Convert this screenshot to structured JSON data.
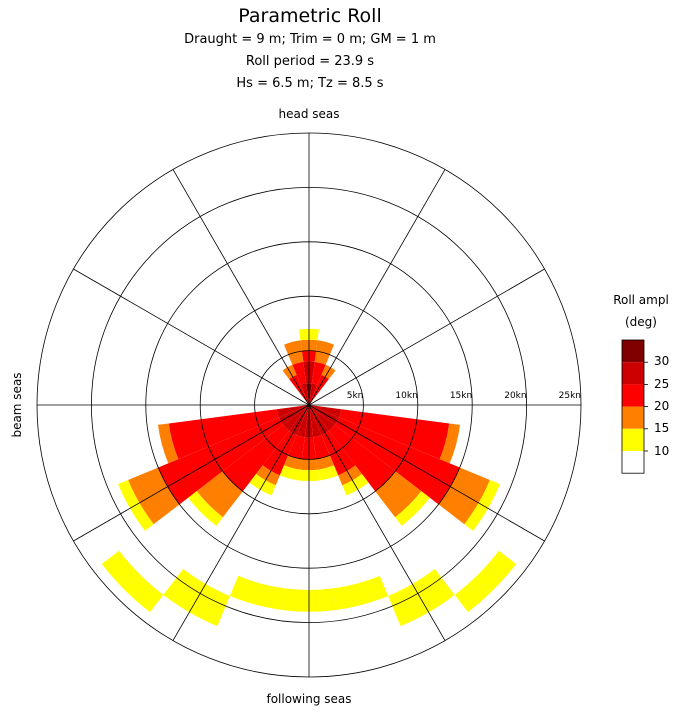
{
  "chart_data": {
    "type": "polar-heatmap",
    "title": "Parametric Roll",
    "subtitles": [
      "Draught = 9 m; Trim = 0 m; GM = 1 m",
      "Roll period = 23.9 s",
      "Hs = 6.5 m; Tz = 8.5 s"
    ],
    "direction_labels": {
      "top": "head seas",
      "left": "beam seas",
      "bottom": "following seas"
    },
    "radial_axis": {
      "ticks": [
        5,
        10,
        15,
        20,
        25
      ],
      "tick_labels": [
        "5kn",
        "10kn",
        "15kn",
        "20kn",
        "25kn"
      ],
      "range": [
        0,
        25
      ],
      "bin_width": 1
    },
    "angular_axis": {
      "spokes_deg": [
        0,
        30,
        60,
        90,
        120,
        150,
        180,
        210,
        240,
        270,
        300,
        330
      ],
      "sector_width_deg": 15
    },
    "legend": {
      "title_line1": "Roll ampl",
      "title_line2": "(deg)",
      "placement": "right",
      "labels": [
        "30",
        "25",
        "20",
        "15",
        "10"
      ],
      "bins": [
        {
          "min": 30,
          "color": "#800000"
        },
        {
          "min": 25,
          "color": "#cc0000"
        },
        {
          "min": 20,
          "color": "#ff0000"
        },
        {
          "min": 15,
          "color": "#ff8000"
        },
        {
          "min": 10,
          "color": "#ffff00"
        },
        {
          "min": 0,
          "color": "#ffffff"
        }
      ]
    },
    "sectors": [
      {
        "heading": 0,
        "cells": [
          {
            "speed": [
              0,
              2
            ],
            "roll": 32
          },
          {
            "speed": [
              2,
              4
            ],
            "roll": 27
          },
          {
            "speed": [
              4,
              5
            ],
            "roll": 22
          },
          {
            "speed": [
              5,
              6
            ],
            "roll": 17
          },
          {
            "speed": [
              6,
              7
            ],
            "roll": 12
          }
        ]
      },
      {
        "heading": 15,
        "cells": [
          {
            "speed": [
              0,
              2
            ],
            "roll": 27
          },
          {
            "speed": [
              2,
              4
            ],
            "roll": 22
          },
          {
            "speed": [
              4,
              6
            ],
            "roll": 17
          }
        ]
      },
      {
        "heading": -15,
        "cells": [
          {
            "speed": [
              0,
              2
            ],
            "roll": 27
          },
          {
            "speed": [
              2,
              4
            ],
            "roll": 22
          },
          {
            "speed": [
              4,
              6
            ],
            "roll": 17
          }
        ]
      },
      {
        "heading": 30,
        "cells": [
          {
            "speed": [
              0,
              3
            ],
            "roll": 22
          },
          {
            "speed": [
              3,
              4
            ],
            "roll": 17
          }
        ]
      },
      {
        "heading": -30,
        "cells": [
          {
            "speed": [
              0,
              3
            ],
            "roll": 22
          },
          {
            "speed": [
              3,
              4
            ],
            "roll": 17
          }
        ]
      },
      {
        "heading": 105,
        "cells": [
          {
            "speed": [
              0,
              3
            ],
            "roll": 27
          },
          {
            "speed": [
              3,
              13
            ],
            "roll": 22
          },
          {
            "speed": [
              13,
              14
            ],
            "roll": 17
          }
        ]
      },
      {
        "heading": -105,
        "cells": [
          {
            "speed": [
              0,
              3
            ],
            "roll": 27
          },
          {
            "speed": [
              3,
              13
            ],
            "roll": 22
          },
          {
            "speed": [
              13,
              14
            ],
            "roll": 17
          }
        ]
      },
      {
        "heading": 120,
        "cells": [
          {
            "speed": [
              0,
              3
            ],
            "roll": 27
          },
          {
            "speed": [
              3,
              15
            ],
            "roll": 22
          },
          {
            "speed": [
              15,
              18
            ],
            "roll": 17
          },
          {
            "speed": [
              18,
              19
            ],
            "roll": 12
          }
        ]
      },
      {
        "heading": -120,
        "cells": [
          {
            "speed": [
              0,
              3
            ],
            "roll": 27
          },
          {
            "speed": [
              3,
              15
            ],
            "roll": 22
          },
          {
            "speed": [
              15,
              18
            ],
            "roll": 17
          },
          {
            "speed": [
              18,
              19
            ],
            "roll": 12
          }
        ]
      },
      {
        "heading": 135,
        "cells": [
          {
            "speed": [
              0,
              3
            ],
            "roll": 27
          },
          {
            "speed": [
              3,
              10
            ],
            "roll": 22
          },
          {
            "speed": [
              10,
              13
            ],
            "roll": 17
          },
          {
            "speed": [
              13,
              14
            ],
            "roll": 12
          },
          {
            "speed": [
              22,
              24
            ],
            "roll": 12
          }
        ]
      },
      {
        "heading": -135,
        "cells": [
          {
            "speed": [
              0,
              3
            ],
            "roll": 27
          },
          {
            "speed": [
              3,
              10
            ],
            "roll": 22
          },
          {
            "speed": [
              10,
              13
            ],
            "roll": 17
          },
          {
            "speed": [
              13,
              14
            ],
            "roll": 12
          },
          {
            "speed": [
              22,
              24
            ],
            "roll": 12
          }
        ]
      },
      {
        "heading": 150,
        "cells": [
          {
            "speed": [
              0,
              3
            ],
            "roll": 27
          },
          {
            "speed": [
              3,
              7
            ],
            "roll": 22
          },
          {
            "speed": [
              7,
              8
            ],
            "roll": 17
          },
          {
            "speed": [
              8,
              9
            ],
            "roll": 12
          },
          {
            "speed": [
              19,
              22
            ],
            "roll": 12
          }
        ]
      },
      {
        "heading": -150,
        "cells": [
          {
            "speed": [
              0,
              3
            ],
            "roll": 27
          },
          {
            "speed": [
              3,
              7
            ],
            "roll": 22
          },
          {
            "speed": [
              7,
              8
            ],
            "roll": 17
          },
          {
            "speed": [
              8,
              9
            ],
            "roll": 12
          },
          {
            "speed": [
              19,
              22
            ],
            "roll": 12
          }
        ]
      },
      {
        "heading": 165,
        "cells": [
          {
            "speed": [
              0,
              3
            ],
            "roll": 27
          },
          {
            "speed": [
              3,
              5
            ],
            "roll": 22
          },
          {
            "speed": [
              5,
              6
            ],
            "roll": 17
          },
          {
            "speed": [
              6,
              7
            ],
            "roll": 12
          },
          {
            "speed": [
              17,
              19
            ],
            "roll": 12
          }
        ]
      },
      {
        "heading": -165,
        "cells": [
          {
            "speed": [
              0,
              3
            ],
            "roll": 27
          },
          {
            "speed": [
              3,
              5
            ],
            "roll": 22
          },
          {
            "speed": [
              5,
              6
            ],
            "roll": 17
          },
          {
            "speed": [
              6,
              7
            ],
            "roll": 12
          },
          {
            "speed": [
              17,
              19
            ],
            "roll": 12
          }
        ]
      },
      {
        "heading": 180,
        "cells": [
          {
            "speed": [
              0,
              3
            ],
            "roll": 27
          },
          {
            "speed": [
              3,
              5
            ],
            "roll": 22
          },
          {
            "speed": [
              5,
              6
            ],
            "roll": 17
          },
          {
            "speed": [
              6,
              7
            ],
            "roll": 12
          },
          {
            "speed": [
              17,
              19
            ],
            "roll": 12
          }
        ]
      }
    ]
  }
}
